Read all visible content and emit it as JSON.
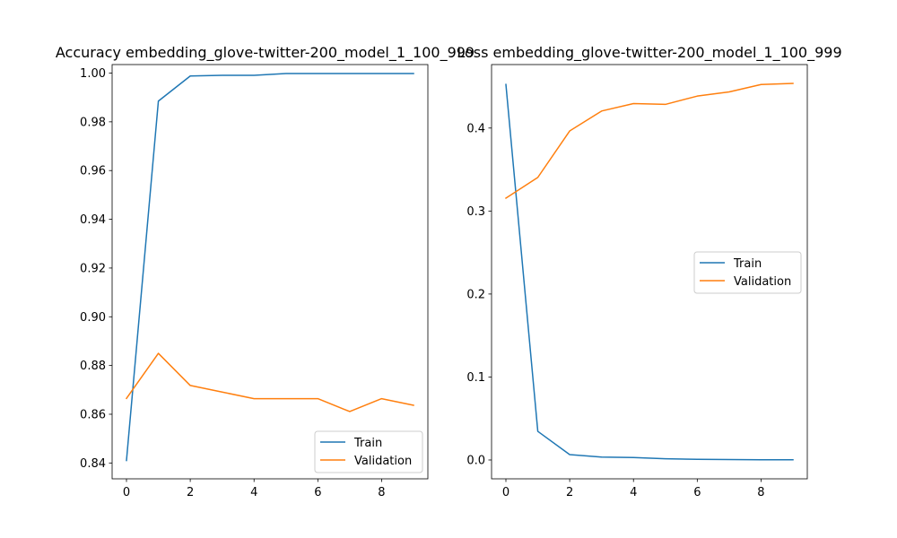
{
  "colors": {
    "train": "#1f77b4",
    "validation": "#ff7f0e"
  },
  "chart_data": [
    {
      "type": "line",
      "title": "Accuracy embedding_glove-twitter-200_model_1_100_999",
      "xlabel": "",
      "ylabel": "",
      "x": [
        0,
        1,
        2,
        3,
        4,
        5,
        6,
        7,
        8,
        9
      ],
      "xlim": [
        -0.45,
        9.45
      ],
      "ylim": [
        0.8335,
        1.0035
      ],
      "xticks": [
        0,
        2,
        4,
        6,
        8
      ],
      "xtick_labels": [
        "0",
        "2",
        "4",
        "6",
        "8"
      ],
      "yticks": [
        0.84,
        0.86,
        0.88,
        0.9,
        0.92,
        0.94,
        0.96,
        0.98,
        1.0
      ],
      "ytick_labels": [
        "0.84",
        "0.86",
        "0.88",
        "0.90",
        "0.92",
        "0.94",
        "0.96",
        "0.98",
        "1.00"
      ],
      "grid": false,
      "legend_position": "lower-right",
      "series": [
        {
          "name": "Train",
          "color": "#1f77b4",
          "values": [
            0.841,
            0.9885,
            0.9988,
            0.9991,
            0.9991,
            0.9998,
            0.9998,
            0.9998,
            0.9998,
            0.9998
          ]
        },
        {
          "name": "Validation",
          "color": "#ff7f0e",
          "values": [
            0.8665,
            0.885,
            0.8718,
            0.8691,
            0.8664,
            0.8664,
            0.8664,
            0.8611,
            0.8664,
            0.8637
          ]
        }
      ]
    },
    {
      "type": "line",
      "title": "Loss embedding_glove-twitter-200_model_1_100_999",
      "xlabel": "",
      "ylabel": "",
      "x": [
        0,
        1,
        2,
        3,
        4,
        5,
        6,
        7,
        8,
        9
      ],
      "xlim": [
        -0.45,
        9.45
      ],
      "ylim": [
        -0.0227,
        0.4765
      ],
      "xticks": [
        0,
        2,
        4,
        6,
        8
      ],
      "xtick_labels": [
        "0",
        "2",
        "4",
        "6",
        "8"
      ],
      "yticks": [
        0.0,
        0.1,
        0.2,
        0.3,
        0.4
      ],
      "ytick_labels": [
        "0.0",
        "0.1",
        "0.2",
        "0.3",
        "0.4"
      ],
      "grid": false,
      "legend_position": "center-right",
      "series": [
        {
          "name": "Train",
          "color": "#1f77b4",
          "values": [
            0.4525,
            0.0345,
            0.0065,
            0.0035,
            0.003,
            0.0015,
            0.0008,
            0.0005,
            0.0003,
            0.0002
          ]
        },
        {
          "name": "Validation",
          "color": "#ff7f0e",
          "values": [
            0.3155,
            0.3405,
            0.3965,
            0.4205,
            0.4295,
            0.4285,
            0.4385,
            0.4435,
            0.4525,
            0.4538
          ]
        }
      ]
    }
  ]
}
